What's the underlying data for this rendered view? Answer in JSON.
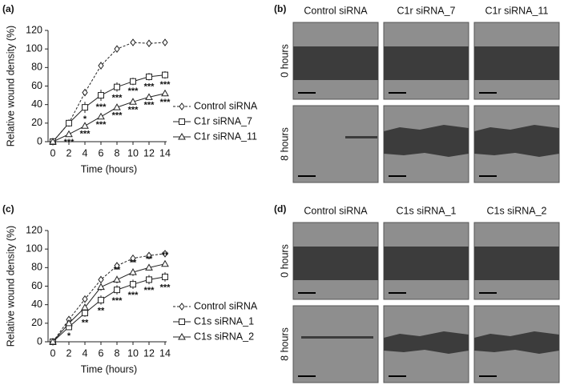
{
  "chart_data": [
    {
      "type": "line",
      "title": "(a)",
      "xlabel": "Time (hours)",
      "ylabel": "Relative wound density (%)",
      "x": [
        0,
        2,
        4,
        6,
        8,
        10,
        12,
        14
      ],
      "xlim": [
        0,
        14
      ],
      "xticks": [
        0,
        2,
        4,
        6,
        8,
        10,
        12,
        14
      ],
      "ylim": [
        0,
        120
      ],
      "yticks": [
        0,
        20,
        40,
        60,
        80,
        100,
        120
      ],
      "series": [
        {
          "name": "Control siRNA",
          "color": "#222222",
          "marker": "diamond",
          "dashed": true,
          "values": [
            0,
            20,
            53,
            82,
            100,
            107,
            106,
            107
          ],
          "errors": [
            0,
            2,
            3,
            4,
            2,
            2,
            1,
            1
          ],
          "significance": [
            null,
            null,
            null,
            null,
            null,
            null,
            null,
            null
          ]
        },
        {
          "name": "C1r siRNA_7",
          "color": "#222222",
          "marker": "square",
          "dashed": false,
          "values": [
            0,
            20,
            37,
            50,
            59,
            65,
            70,
            72
          ],
          "errors": [
            0,
            3,
            6,
            6,
            5,
            4,
            4,
            4
          ],
          "significance": [
            null,
            null,
            "*",
            "***",
            "***",
            "***",
            "***",
            "***"
          ]
        },
        {
          "name": "C1r siRNA_11",
          "color": "#222222",
          "marker": "triangle",
          "dashed": false,
          "values": [
            0,
            8,
            17,
            27,
            37,
            43,
            48,
            52
          ],
          "errors": [
            0,
            2,
            2,
            2,
            2,
            2,
            2,
            3
          ],
          "significance": [
            null,
            "***",
            "***",
            "***",
            "***",
            "***",
            "***",
            "***"
          ]
        }
      ]
    },
    {
      "type": "line",
      "title": "(c)",
      "xlabel": "Time (hours)",
      "ylabel": "Relative wound density (%)",
      "x": [
        0,
        2,
        4,
        6,
        8,
        10,
        12,
        14
      ],
      "xlim": [
        0,
        14
      ],
      "xticks": [
        0,
        2,
        4,
        6,
        8,
        10,
        12,
        14
      ],
      "ylim": [
        0,
        120
      ],
      "yticks": [
        0,
        20,
        40,
        60,
        80,
        100,
        120
      ],
      "series": [
        {
          "name": "Control siRNA",
          "color": "#222222",
          "marker": "diamond",
          "dashed": true,
          "values": [
            0,
            24,
            46,
            67,
            82,
            90,
            93,
            95
          ],
          "errors": [
            0,
            2,
            3,
            3,
            3,
            2,
            1,
            1
          ],
          "significance": [
            null,
            null,
            null,
            null,
            null,
            null,
            null,
            null
          ]
        },
        {
          "name": "C1s siRNA_1",
          "color": "#222222",
          "marker": "square",
          "dashed": false,
          "values": [
            0,
            16,
            31,
            45,
            56,
            62,
            67,
            70
          ],
          "errors": [
            0,
            3,
            4,
            5,
            5,
            5,
            5,
            5
          ],
          "significance": [
            null,
            "*",
            "**",
            "**",
            "***",
            "***",
            "***",
            "***"
          ]
        },
        {
          "name": "C1s siRNA_2",
          "color": "#222222",
          "marker": "triangle",
          "dashed": false,
          "values": [
            0,
            20,
            37,
            59,
            67,
            75,
            80,
            84
          ],
          "errors": [
            0,
            2,
            3,
            4,
            4,
            4,
            3,
            3
          ],
          "significance": [
            null,
            null,
            null,
            null,
            "**",
            "**",
            "**",
            "**"
          ]
        }
      ]
    }
  ],
  "image_panels": [
    {
      "label": "(b)",
      "columns": [
        "Control siRNA",
        "C1r siRNA_7",
        "C1r siRNA_11"
      ],
      "rows": [
        "0 hours",
        "8 hours"
      ]
    },
    {
      "label": "(d)",
      "columns": [
        "Control siRNA",
        "C1s siRNA_1",
        "C1s siRNA_2"
      ],
      "rows": [
        "0 hours",
        "8 hours"
      ]
    }
  ]
}
